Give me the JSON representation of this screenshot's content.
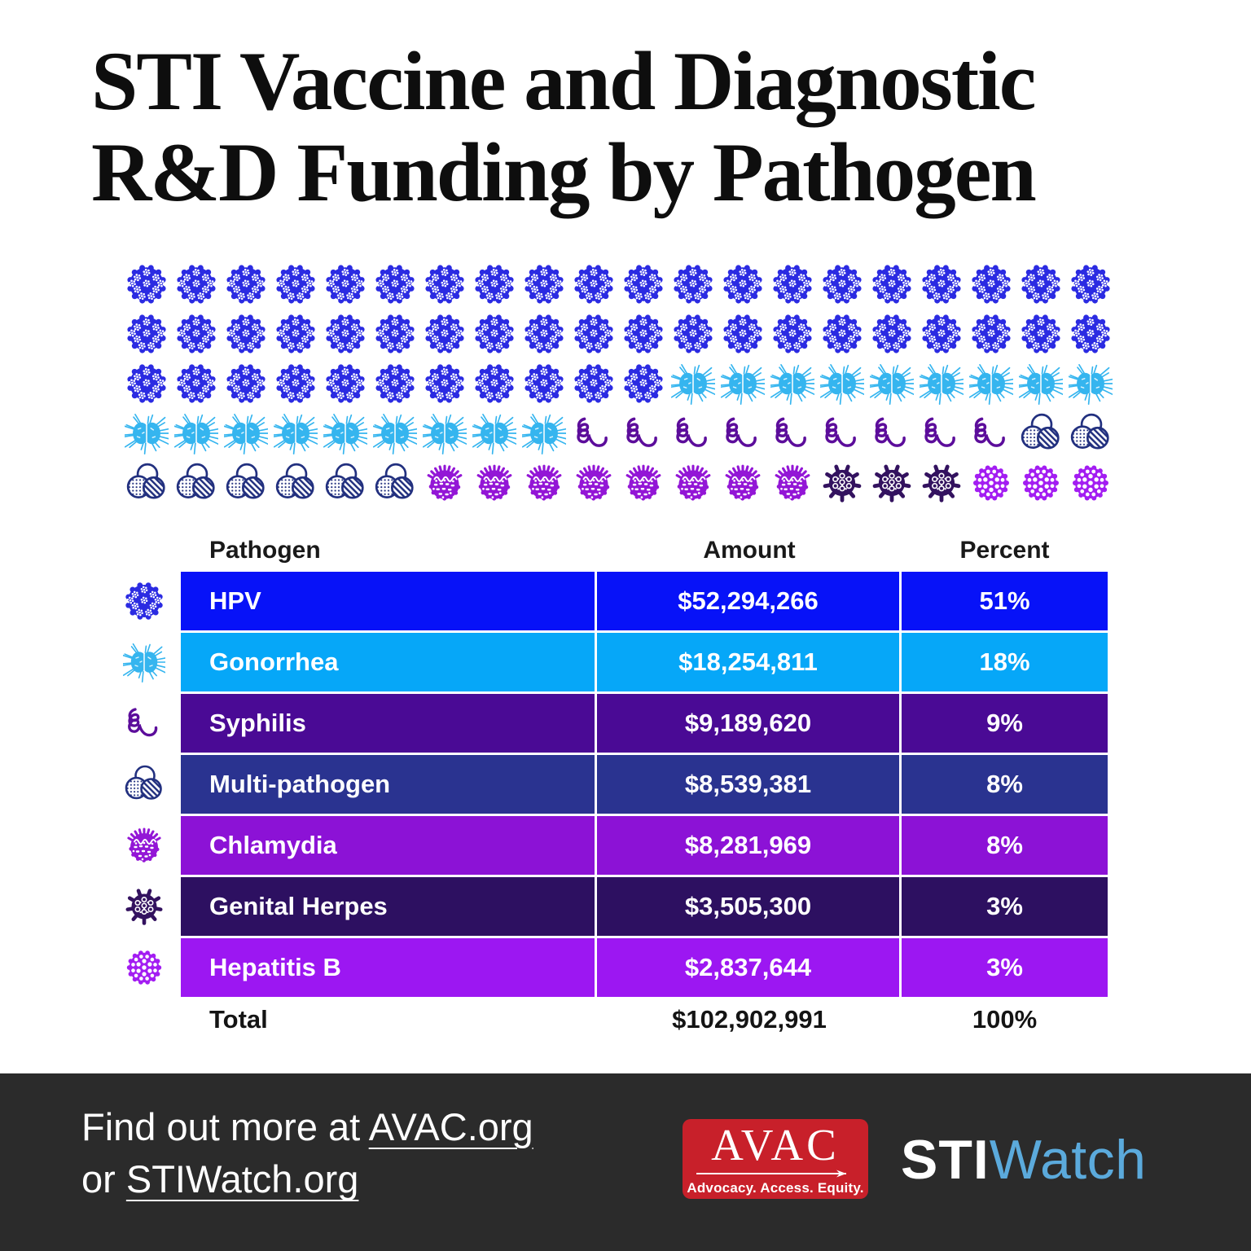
{
  "title": {
    "line1": "STI Vaccine and Diagnostic",
    "line2": "R&D Funding by Pathogen"
  },
  "pictogram": {
    "icons_per_row": 20,
    "total_units": 100,
    "sequence": [
      {
        "type": "hpv",
        "icon": "hpv-virus-icon",
        "count": 51
      },
      {
        "type": "gonorrhea",
        "icon": "gonorrhea-bacteria-icon",
        "count": 18
      },
      {
        "type": "syphilis",
        "icon": "syphilis-spirochete-icon",
        "count": 9
      },
      {
        "type": "multi-pathogen",
        "icon": "multi-pathogen-venn-icon",
        "count": 8
      },
      {
        "type": "chlamydia",
        "icon": "chlamydia-bacteria-icon",
        "count": 8
      },
      {
        "type": "genital-herpes",
        "icon": "herpes-virus-icon",
        "count": 3
      },
      {
        "type": "hepatitis-b",
        "icon": "hepatitis-b-virus-icon",
        "count": 3
      }
    ]
  },
  "icon_colors": {
    "hpv": "#2b2be2",
    "gonorrhea": "#35b5ef",
    "syphilis": "#5c0d9b",
    "multi-pathogen": "#22307f",
    "chlamydia": "#9316d6",
    "genital-herpes": "#33125f",
    "hepatitis-b": "#a31df2"
  },
  "table": {
    "headers": {
      "pathogen": "Pathogen",
      "amount": "Amount",
      "percent": "Percent"
    },
    "rows": [
      {
        "id": "hpv",
        "label": "HPV",
        "amount": "$52,294,266",
        "percent": "51%",
        "row_color": "#0712f8"
      },
      {
        "id": "gonorrhea",
        "label": "Gonorrhea",
        "amount": "$18,254,811",
        "percent": "18%",
        "row_color": "#06a7f8"
      },
      {
        "id": "syphilis",
        "label": "Syphilis",
        "amount": "$9,189,620",
        "percent": "9%",
        "row_color": "#4a0a95"
      },
      {
        "id": "multi-pathogen",
        "label": "Multi-pathogen",
        "amount": "$8,539,381",
        "percent": "8%",
        "row_color": "#2a3390"
      },
      {
        "id": "chlamydia",
        "label": "Chlamydia",
        "amount": "$8,281,969",
        "percent": "8%",
        "row_color": "#8c12d6"
      },
      {
        "id": "genital-herpes",
        "label": "Genital Herpes",
        "amount": "$3,505,300",
        "percent": "3%",
        "row_color": "#2d1061"
      },
      {
        "id": "hepatitis-b",
        "label": "Hepatitis B",
        "amount": "$2,837,644",
        "percent": "3%",
        "row_color": "#9c17f2"
      }
    ],
    "total": {
      "label": "Total",
      "amount": "$102,902,991",
      "percent": "100%"
    }
  },
  "chart_data": {
    "type": "table",
    "title": "STI Vaccine and Diagnostic R&D Funding by Pathogen",
    "columns": [
      "Pathogen",
      "Amount",
      "Percent"
    ],
    "categories": [
      "HPV",
      "Gonorrhea",
      "Syphilis",
      "Multi-pathogen",
      "Chlamydia",
      "Genital Herpes",
      "Hepatitis B"
    ],
    "amounts_usd": [
      52294266,
      18254811,
      9189620,
      8539381,
      8281969,
      3505300,
      2837644
    ],
    "percents": [
      51,
      18,
      9,
      8,
      8,
      3,
      3
    ],
    "total": {
      "label": "Total",
      "amount_usd": 102902991,
      "percent": 100
    },
    "pictogram": {
      "unit_percent": 1,
      "units_total": 100,
      "icons_per_row": 20
    }
  },
  "footer": {
    "cta_prefix": "Find out more at ",
    "cta_link1": "AVAC.org",
    "cta_line2_prefix": "or ",
    "cta_link2": "STIWatch.org",
    "background_color": "#2b2b2b",
    "avac": {
      "name": "AVAC",
      "tagline": "Advocacy. Access. Equity.",
      "box_color": "#c8202a"
    },
    "stiwatch": {
      "part1": "STI",
      "part2": "Watch",
      "accent_color": "#5baadc"
    }
  }
}
